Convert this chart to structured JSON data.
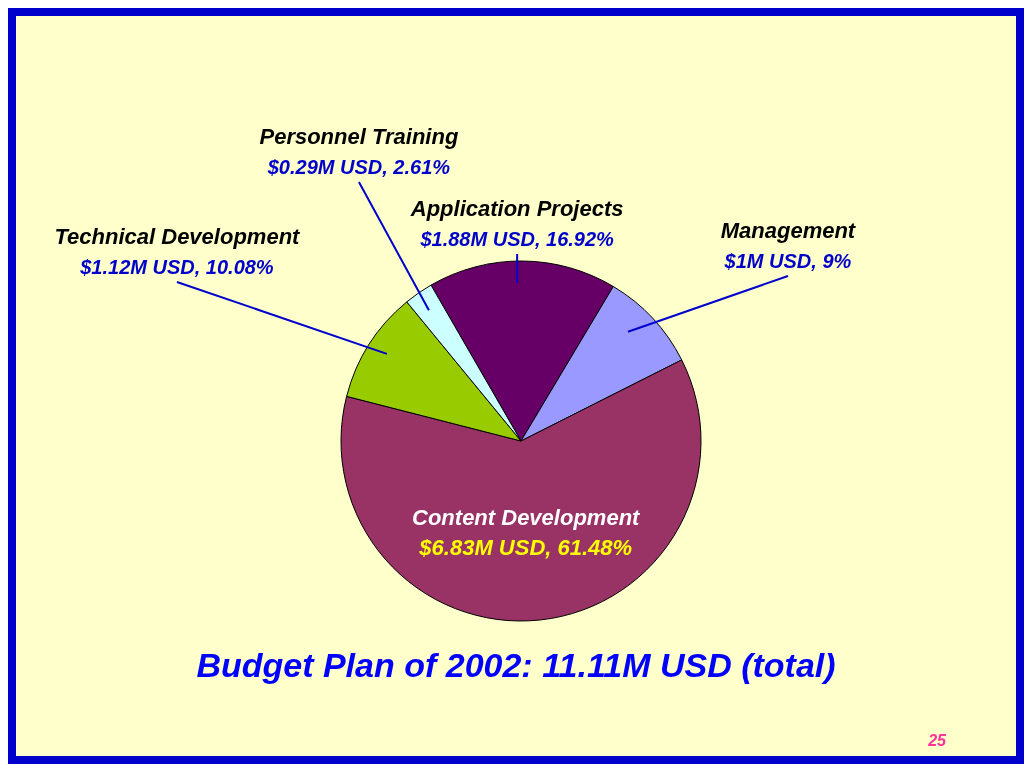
{
  "chart_data": {
    "type": "pie",
    "title": "Budget Plan of 2002: 11.11M USD (total)",
    "categories": [
      "Application Projects",
      "Management",
      "Content Development",
      "Technical Development",
      "Personnel Training"
    ],
    "values": [
      16.92,
      9,
      61.48,
      10.08,
      2.61
    ],
    "colors": [
      "#660066",
      "#9999ff",
      "#993366",
      "#99cc00",
      "#ccffff"
    ],
    "value_labels": [
      "$1.88M USD, 16.92%",
      "$1M USD, 9%",
      "$6.83M USD,  61.48%",
      "$1.12M USD, 10.08%",
      "$0.29M USD, 2.61%"
    ],
    "annotations": [
      "25"
    ]
  }
}
